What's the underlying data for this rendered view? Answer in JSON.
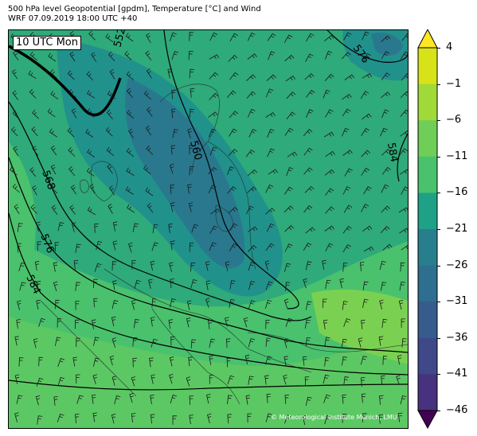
{
  "header": {
    "title_line1": "500 hPa level Geopotential [gpdm], Temperature [°C] and Wind",
    "title_line2": "WRF 07.09.2019 18:00 UTC +40"
  },
  "map": {
    "time_label": "10 UTC Mon",
    "copyright": "© Meteorological Institute Munich, LMU",
    "contour_labels": [
      "552",
      "560",
      "568",
      "576",
      "584",
      "576",
      "584"
    ]
  },
  "colorbar": {
    "ticks": [
      "4",
      "−1",
      "−6",
      "−11",
      "−16",
      "−21",
      "−26",
      "−31",
      "−36",
      "−41",
      "−46"
    ],
    "colors": [
      "#fde725",
      "#d8e219",
      "#a0da39",
      "#6ece58",
      "#4ac16d",
      "#1fa187",
      "#277f8e",
      "#2e6e8e",
      "#365c8d",
      "#3f4889",
      "#46327e",
      "#440154"
    ]
  }
}
